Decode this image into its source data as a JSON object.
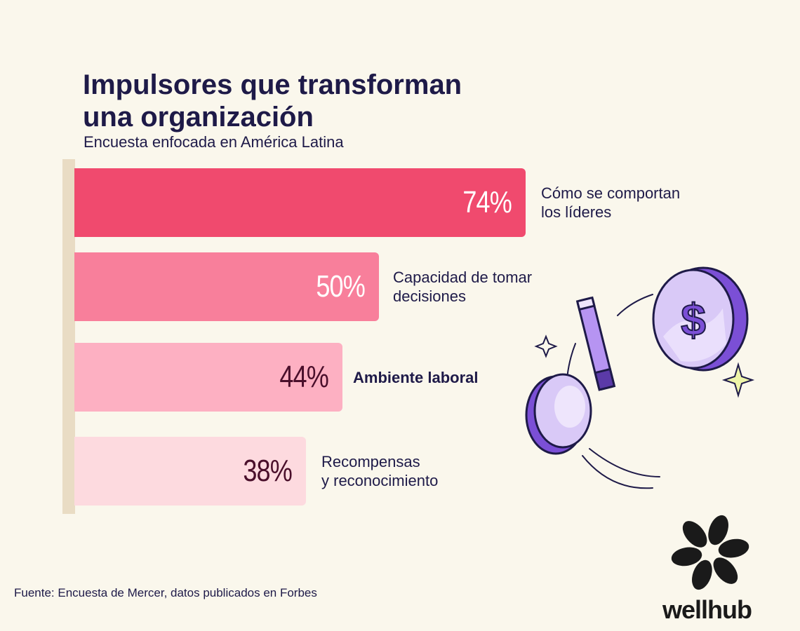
{
  "title": "Impulsores que transforman una organización",
  "subtitle": "Encuesta enfocada en América Latina",
  "source": "Fuente: Encuesta de Mercer, datos publicados en Forbes",
  "brand": "wellhub",
  "colors": {
    "background": "#FAF7EC",
    "text": "#1E1A48",
    "axis": "#E9DCC4",
    "bar_1": "#F04A6E",
    "bar_2": "#F87F9B",
    "bar_3": "#FDB0C2",
    "bar_4": "#FDDADF",
    "value_light": "#FFFFFF",
    "value_dark": "#4A0F2B"
  },
  "chart_data": {
    "type": "bar",
    "orientation": "horizontal",
    "title": "Impulsores que transforman una organización",
    "subtitle": "Encuesta enfocada en América Latina",
    "unit": "%",
    "xlim": [
      0,
      100
    ],
    "categories": [
      "Cómo se comportan\nlos líderes",
      "Capacidad de tomar\ndecisiones",
      "Ambiente laboral",
      "Recompensas\ny reconocimiento"
    ],
    "values": [
      74,
      50,
      44,
      38
    ],
    "value_labels": [
      "74%",
      "50%",
      "44%",
      "38%"
    ],
    "emphasized": [
      false,
      false,
      true,
      false
    ]
  }
}
